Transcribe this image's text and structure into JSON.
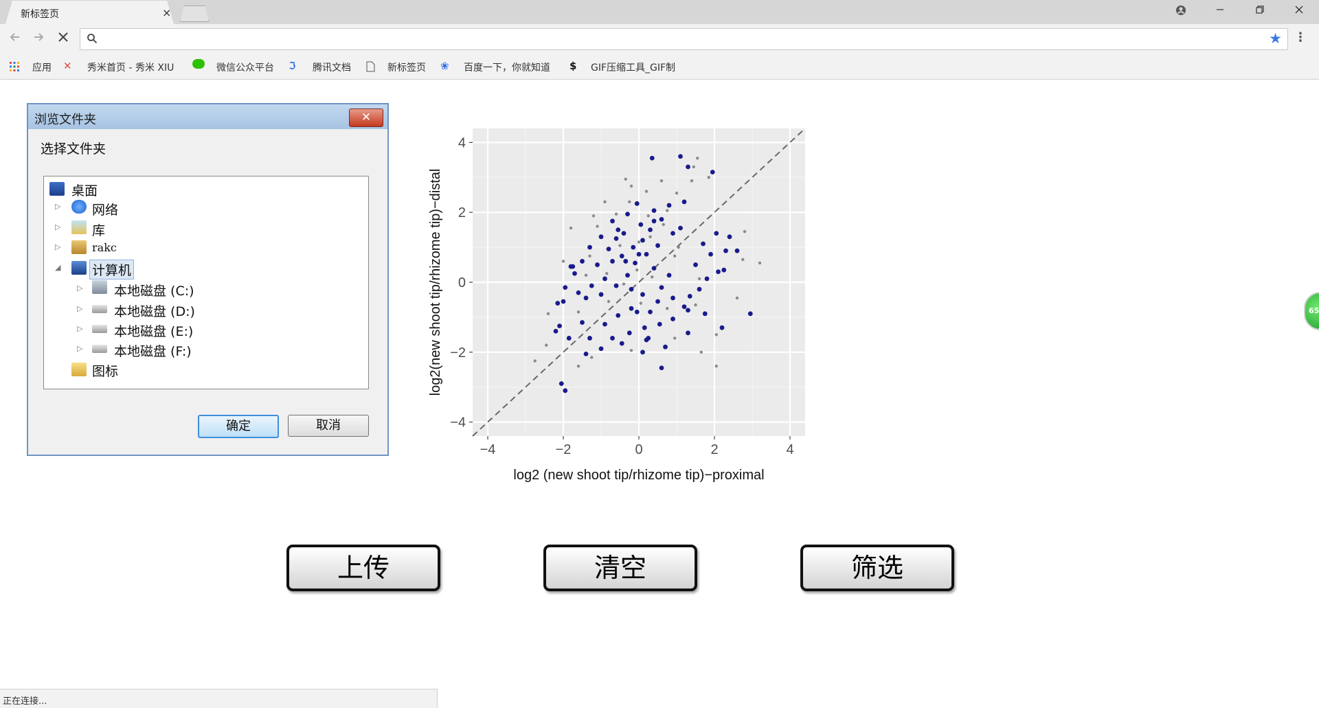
{
  "browser": {
    "tab_title": "新标签页",
    "tab_close": "×",
    "bookmarks": [
      {
        "label": "应用",
        "icon": "apps-grid-icon"
      },
      {
        "label": "秀米首页 - 秀米 XIU",
        "icon": "xiumi-icon"
      },
      {
        "label": "微信公众平台",
        "icon": "wechat-icon"
      },
      {
        "label": "腾讯文档",
        "icon": "tencent-docs-icon"
      },
      {
        "label": "新标签页",
        "icon": "page-icon"
      },
      {
        "label": "百度一下，你就知道",
        "icon": "baidu-icon"
      },
      {
        "label": "GIF压缩工具_GIF制",
        "icon": "gif-tool-icon"
      }
    ],
    "status_text": "正在连接...",
    "side_badge": "65",
    "accent_color": "#3b7ae6"
  },
  "dialog": {
    "title": "浏览文件夹",
    "close": "✕",
    "prompt": "选择文件夹",
    "tree": [
      {
        "label": "桌面",
        "icon": "desktop-icon"
      },
      {
        "label": "网络",
        "icon": "network-icon"
      },
      {
        "label": "库",
        "icon": "library-icon"
      },
      {
        "label": "rakc",
        "icon": "user-folder-icon"
      },
      {
        "label": "计算机",
        "icon": "computer-icon"
      },
      {
        "label": "本地磁盘 (C:)",
        "icon": "system-drive-icon"
      },
      {
        "label": "本地磁盘 (D:)",
        "icon": "drive-icon"
      },
      {
        "label": "本地磁盘 (E:)",
        "icon": "drive-icon"
      },
      {
        "label": "本地磁盘 (F:)",
        "icon": "drive-icon"
      },
      {
        "label": "图标",
        "icon": "folder-icon"
      }
    ],
    "ok": "确定",
    "cancel": "取消"
  },
  "actions": {
    "upload": "上传",
    "clear": "清空",
    "filter": "筛选"
  },
  "chart_data": {
    "type": "scatter",
    "title": "",
    "xlabel": "log2 (new shoot tip/rhizome tip)−proximal",
    "ylabel": "log2(new shoot tip/rhizome tip)−distal",
    "xlim": [
      -4.4,
      4.4
    ],
    "ylim": [
      -4.4,
      4.4
    ],
    "xticks": [
      "−4",
      "−2",
      "0",
      "2",
      "4"
    ],
    "yticks": [
      "4",
      "2",
      "0",
      "−2",
      "−4"
    ],
    "grid": true,
    "background": "#ebebeb",
    "reference_line": "y = x (dashed)",
    "series": [
      {
        "color": "#1a1a8c",
        "points": [
          [
            0.35,
            3.55
          ],
          [
            1.1,
            3.6
          ],
          [
            1.95,
            3.15
          ],
          [
            1.3,
            3.3
          ],
          [
            -0.05,
            2.25
          ],
          [
            0.4,
            2.05
          ],
          [
            0.8,
            2.2
          ],
          [
            -0.3,
            1.95
          ],
          [
            -0.7,
            1.75
          ],
          [
            0.05,
            1.65
          ],
          [
            0.6,
            1.8
          ],
          [
            1.2,
            2.3
          ],
          [
            0.3,
            1.5
          ],
          [
            -0.4,
            1.4
          ],
          [
            0.9,
            1.4
          ],
          [
            0.1,
            1.2
          ],
          [
            -0.15,
            1.0
          ],
          [
            0.5,
            1.05
          ],
          [
            -0.6,
            1.25
          ],
          [
            -1.0,
            1.3
          ],
          [
            -1.3,
            1.0
          ],
          [
            -0.8,
            0.95
          ],
          [
            -0.45,
            0.75
          ],
          [
            -0.1,
            0.55
          ],
          [
            0.2,
            0.8
          ],
          [
            0.4,
            0.4
          ],
          [
            -0.7,
            0.6
          ],
          [
            -1.1,
            0.5
          ],
          [
            -1.5,
            0.6
          ],
          [
            -1.8,
            0.45
          ],
          [
            -0.3,
            0.2
          ],
          [
            -0.9,
            0.1
          ],
          [
            -1.25,
            -0.1
          ],
          [
            -1.6,
            -0.3
          ],
          [
            -2.0,
            -0.55
          ],
          [
            -1.4,
            -0.45
          ],
          [
            -1.0,
            -0.35
          ],
          [
            -0.6,
            -0.1
          ],
          [
            -2.15,
            -0.6
          ],
          [
            -1.7,
            0.25
          ],
          [
            -0.2,
            -0.2
          ],
          [
            0.1,
            -0.35
          ],
          [
            0.5,
            -0.55
          ],
          [
            0.9,
            -0.45
          ],
          [
            1.2,
            -0.7
          ],
          [
            1.35,
            -0.4
          ],
          [
            1.6,
            -0.2
          ],
          [
            1.8,
            0.1
          ],
          [
            2.1,
            0.3
          ],
          [
            1.5,
            0.5
          ],
          [
            1.9,
            0.8
          ],
          [
            2.3,
            0.9
          ],
          [
            2.6,
            0.9
          ],
          [
            2.4,
            1.3
          ],
          [
            2.05,
            1.4
          ],
          [
            1.7,
            1.1
          ],
          [
            2.25,
            0.35
          ],
          [
            0.8,
            0.2
          ],
          [
            0.6,
            -0.15
          ],
          [
            0.3,
            -0.85
          ],
          [
            -0.2,
            -0.75
          ],
          [
            -0.55,
            -0.95
          ],
          [
            -0.9,
            -1.2
          ],
          [
            -1.5,
            -1.15
          ],
          [
            -2.1,
            -1.25
          ],
          [
            -1.85,
            -1.6
          ],
          [
            -2.2,
            -1.4
          ],
          [
            -1.3,
            -1.6
          ],
          [
            -0.7,
            -1.6
          ],
          [
            -0.25,
            -1.45
          ],
          [
            0.15,
            -1.3
          ],
          [
            0.55,
            -1.2
          ],
          [
            0.9,
            -1.05
          ],
          [
            1.3,
            -0.8
          ],
          [
            1.75,
            -0.9
          ],
          [
            0.7,
            -1.85
          ],
          [
            0.2,
            -1.65
          ],
          [
            -0.45,
            -1.75
          ],
          [
            -1.0,
            -1.9
          ],
          [
            -1.4,
            -2.05
          ],
          [
            -2.05,
            -2.9
          ],
          [
            -1.95,
            -3.1
          ],
          [
            0.1,
            -2.0
          ],
          [
            0.6,
            -2.45
          ],
          [
            1.3,
            -1.45
          ],
          [
            2.2,
            -1.3
          ],
          [
            2.95,
            -0.9
          ],
          [
            -1.75,
            0.45
          ],
          [
            -1.95,
            -0.15
          ],
          [
            -0.35,
            0.6
          ],
          [
            0.0,
            0.8
          ],
          [
            -0.05,
            -0.85
          ],
          [
            0.25,
            -1.6
          ],
          [
            0.4,
            1.75
          ],
          [
            -0.55,
            1.5
          ],
          [
            1.1,
            1.55
          ]
        ]
      },
      {
        "color": "#8a8a8a",
        "points": [
          [
            1.55,
            3.55
          ],
          [
            1.45,
            3.3
          ],
          [
            1.85,
            3.0
          ],
          [
            1.4,
            2.9
          ],
          [
            -0.35,
            2.95
          ],
          [
            -0.2,
            2.75
          ],
          [
            0.6,
            2.9
          ],
          [
            1.0,
            2.55
          ],
          [
            0.75,
            2.05
          ],
          [
            -0.25,
            2.3
          ],
          [
            0.2,
            2.6
          ],
          [
            -0.9,
            2.3
          ],
          [
            -1.2,
            1.9
          ],
          [
            -1.8,
            1.55
          ],
          [
            -1.1,
            1.6
          ],
          [
            0.25,
            1.9
          ],
          [
            0.65,
            1.65
          ],
          [
            -0.5,
            1.05
          ],
          [
            0.3,
            1.3
          ],
          [
            1.05,
            1.0
          ],
          [
            -1.3,
            0.75
          ],
          [
            -2.0,
            0.6
          ],
          [
            -0.85,
            0.25
          ],
          [
            -1.4,
            0.2
          ],
          [
            0.35,
            0.15
          ],
          [
            0.95,
            0.75
          ],
          [
            -0.4,
            -0.05
          ],
          [
            -0.05,
            0.35
          ],
          [
            -2.4,
            -0.9
          ],
          [
            -1.6,
            -0.85
          ],
          [
            -0.8,
            -0.55
          ],
          [
            0.05,
            -0.6
          ],
          [
            0.75,
            -0.75
          ],
          [
            1.5,
            -0.65
          ],
          [
            2.75,
            0.65
          ],
          [
            2.8,
            1.45
          ],
          [
            3.2,
            0.55
          ],
          [
            2.6,
            -0.45
          ],
          [
            2.05,
            -1.5
          ],
          [
            -2.75,
            -2.25
          ],
          [
            -2.45,
            -1.8
          ],
          [
            -1.25,
            -2.15
          ],
          [
            -0.2,
            -1.95
          ],
          [
            1.65,
            -2.0
          ],
          [
            2.05,
            -2.4
          ],
          [
            0.95,
            -1.6
          ],
          [
            1.6,
            0.1
          ],
          [
            -0.6,
            1.95
          ],
          [
            0.0,
            1.15
          ],
          [
            -1.6,
            -2.4
          ]
        ]
      }
    ]
  }
}
